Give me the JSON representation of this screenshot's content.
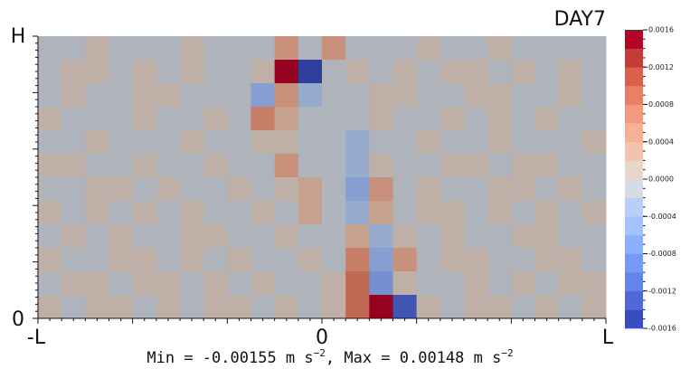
{
  "chart_data": {
    "type": "heatmap",
    "title": "DAY7",
    "x_labels": [
      "-L",
      "0",
      "L"
    ],
    "y_labels": [
      "H",
      "0"
    ],
    "footer": [
      "Min = -0.00155 m s",
      "−2",
      ",  Max = 0.00148 m s",
      "−2"
    ],
    "zlim": [
      -0.0016,
      0.0016
    ],
    "zticks": [
      0.0016,
      0.0012,
      0.0008,
      0.0004,
      {
        "value": 0,
        "label": "0.0000"
      },
      -0.0004,
      -0.0008,
      -0.0012,
      -0.0016
    ],
    "colors": [
      "#3b4cc0",
      "#4f69d9",
      "#6384eb",
      "#779af7",
      "#8db0fe",
      "#a3c2fe",
      "#b8d0f9",
      "#d5dbe5",
      "#e8d6cc",
      "#f2c4ad",
      "#f5b096",
      "#f29a7e",
      "#e97f65",
      "#d9604b",
      "#c43c37",
      "#b40426"
    ],
    "z": [
      [
        -5e-05,
        -5e-05,
        5e-05,
        -5e-05,
        -5e-05,
        -5e-05,
        5e-05,
        -5e-05,
        -5e-05,
        -5e-05,
        0.0005,
        -5e-05,
        0.0005,
        -5e-05,
        -5e-05,
        -5e-05,
        5e-05,
        -5e-05,
        -5e-05,
        5e-05,
        -5e-05,
        -5e-05,
        -5e-05,
        -5e-05
      ],
      [
        -5e-05,
        5e-05,
        5e-05,
        -5e-05,
        5e-05,
        -5e-05,
        5e-05,
        -5e-05,
        -5e-05,
        5e-05,
        0.0015,
        -0.0015,
        -5e-05,
        5e-05,
        -5e-05,
        5e-05,
        -5e-05,
        5e-05,
        5e-05,
        -5e-05,
        5e-05,
        -5e-05,
        5e-05,
        -5e-05
      ],
      [
        -5e-05,
        5e-05,
        -5e-05,
        -5e-05,
        5e-05,
        5e-05,
        -5e-05,
        -5e-05,
        -5e-05,
        -0.0005,
        0.0005,
        -0.0003,
        -5e-05,
        -5e-05,
        5e-05,
        5e-05,
        -5e-05,
        -5e-05,
        5e-05,
        5e-05,
        -5e-05,
        -5e-05,
        5e-05,
        -5e-05
      ],
      [
        5e-05,
        -5e-05,
        -5e-05,
        -5e-05,
        5e-05,
        -5e-05,
        -5e-05,
        5e-05,
        -5e-05,
        0.0007,
        0.0003,
        -5e-05,
        -5e-05,
        -5e-05,
        5e-05,
        -5e-05,
        -5e-05,
        5e-05,
        -5e-05,
        5e-05,
        -5e-05,
        5e-05,
        -5e-05,
        -5e-05
      ],
      [
        -5e-05,
        -5e-05,
        5e-05,
        -5e-05,
        -5e-05,
        -5e-05,
        5e-05,
        -5e-05,
        -5e-05,
        5e-05,
        5e-05,
        -5e-05,
        -5e-05,
        -0.0003,
        -5e-05,
        -5e-05,
        5e-05,
        -5e-05,
        -5e-05,
        5e-05,
        -5e-05,
        -5e-05,
        -5e-05,
        5e-05
      ],
      [
        5e-05,
        5e-05,
        -5e-05,
        -5e-05,
        5e-05,
        -5e-05,
        -5e-05,
        5e-05,
        -5e-05,
        -5e-05,
        0.0005,
        -5e-05,
        -5e-05,
        -0.0003,
        5e-05,
        -5e-05,
        -5e-05,
        5e-05,
        5e-05,
        -5e-05,
        5e-05,
        5e-05,
        -5e-05,
        -5e-05
      ],
      [
        -5e-05,
        -5e-05,
        5e-05,
        5e-05,
        -5e-05,
        5e-05,
        -5e-05,
        -5e-05,
        5e-05,
        -5e-05,
        5e-05,
        0.0003,
        -5e-05,
        -0.0005,
        0.0005,
        -5e-05,
        5e-05,
        -5e-05,
        -5e-05,
        5e-05,
        5e-05,
        -5e-05,
        5e-05,
        -5e-05
      ],
      [
        5e-05,
        -5e-05,
        5e-05,
        -5e-05,
        5e-05,
        -5e-05,
        5e-05,
        -5e-05,
        -5e-05,
        5e-05,
        -5e-05,
        0.0003,
        -5e-05,
        -0.0004,
        0.0003,
        -5e-05,
        5e-05,
        5e-05,
        -5e-05,
        5e-05,
        -5e-05,
        5e-05,
        -5e-05,
        5e-05
      ],
      [
        -5e-05,
        5e-05,
        -5e-05,
        5e-05,
        -5e-05,
        -5e-05,
        5e-05,
        5e-05,
        -5e-05,
        -5e-05,
        5e-05,
        -5e-05,
        -5e-05,
        0.0003,
        -0.0004,
        5e-05,
        -5e-05,
        5e-05,
        -5e-05,
        -5e-05,
        5e-05,
        5e-05,
        -5e-05,
        -5e-05
      ],
      [
        5e-05,
        -5e-05,
        -5e-05,
        5e-05,
        5e-05,
        -5e-05,
        5e-05,
        -5e-05,
        5e-05,
        -5e-05,
        -5e-05,
        5e-05,
        -5e-05,
        0.0007,
        -0.0005,
        0.0004,
        -5e-05,
        5e-05,
        5e-05,
        -5e-05,
        -5e-05,
        5e-05,
        5e-05,
        -5e-05
      ],
      [
        -5e-05,
        5e-05,
        5e-05,
        -5e-05,
        5e-05,
        5e-05,
        -5e-05,
        5e-05,
        -5e-05,
        5e-05,
        -5e-05,
        -5e-05,
        5e-05,
        0.0009,
        -0.0007,
        5e-05,
        -5e-05,
        -5e-05,
        5e-05,
        -5e-05,
        5e-05,
        -5e-05,
        5e-05,
        5e-05
      ],
      [
        5e-05,
        -5e-05,
        5e-05,
        5e-05,
        -5e-05,
        5e-05,
        -5e-05,
        5e-05,
        5e-05,
        -5e-05,
        5e-05,
        -5e-05,
        5e-05,
        0.0008,
        0.0014,
        -0.0013,
        5e-05,
        -5e-05,
        5e-05,
        5e-05,
        -5e-05,
        5e-05,
        -5e-05,
        5e-05
      ]
    ]
  }
}
